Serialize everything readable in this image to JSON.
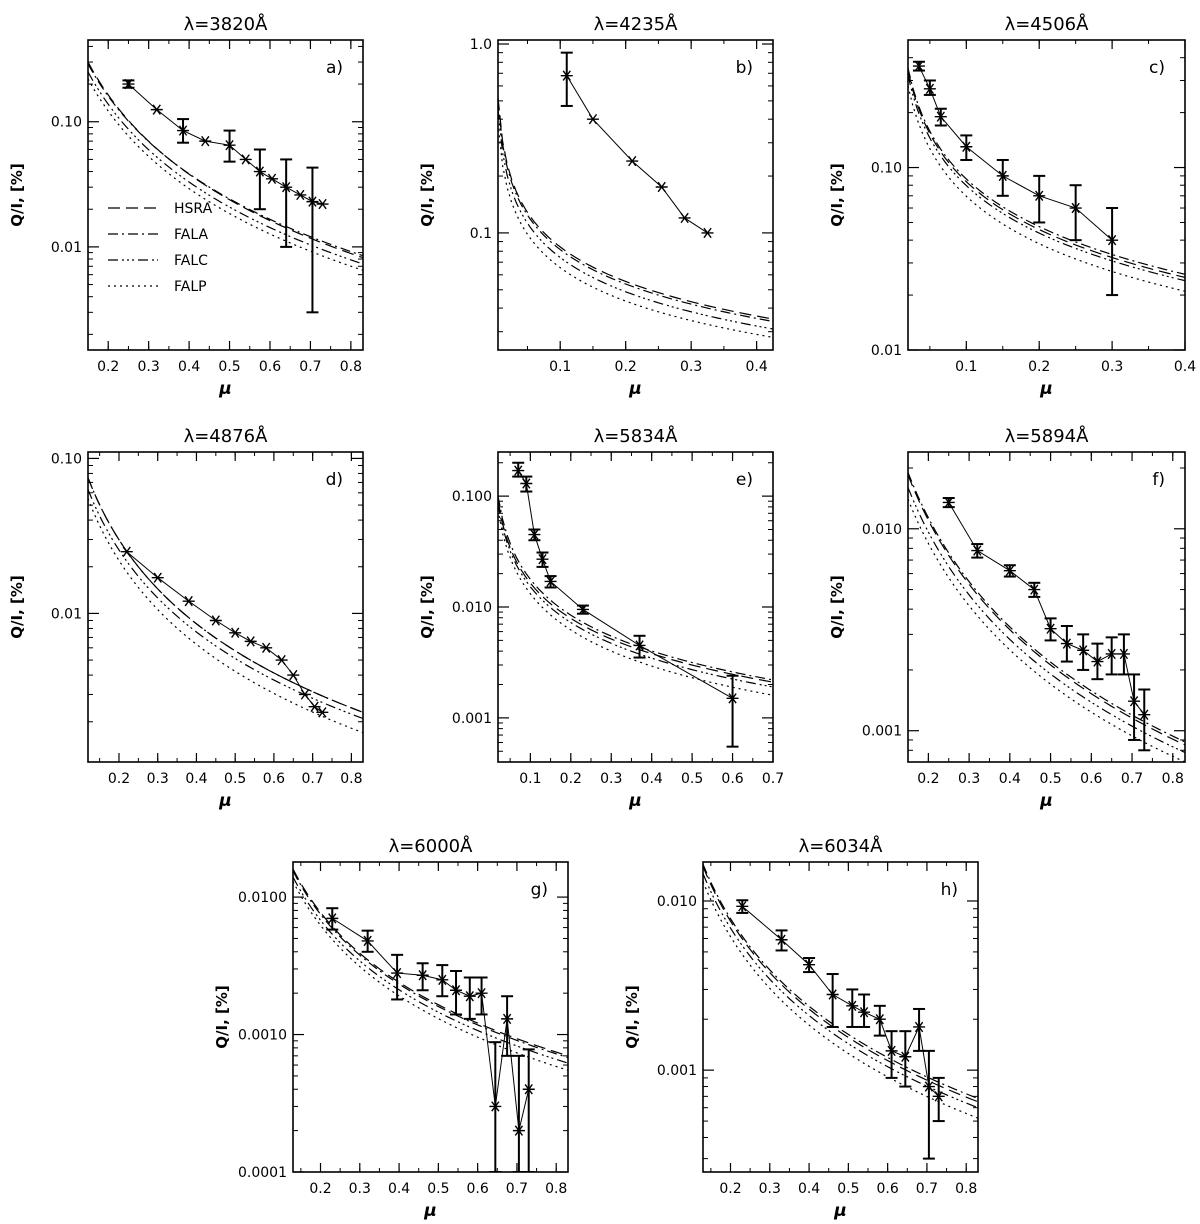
{
  "chart_data": [
    {
      "type": "line",
      "panel": "a)",
      "title": "λ=3820Å",
      "xlabel": "μ",
      "ylabel": "Q/I, [%]",
      "xlim": [
        0.15,
        0.83
      ],
      "ylim": [
        0.0015,
        0.45
      ],
      "yscale": "log",
      "xticks": [
        "0.2",
        "0.3",
        "0.4",
        "0.5",
        "0.6",
        "0.7",
        "0.8"
      ],
      "yticks": [
        {
          "value": 0.1,
          "label": "0.10"
        },
        {
          "value": 0.01,
          "label": "0.01"
        }
      ],
      "legend": [
        "HSRA",
        "FALA",
        "FALC",
        "FALP"
      ],
      "models": {
        "HSRA": [
          0.3,
          0.0082
        ],
        "FALA": [
          0.29,
          0.0085
        ],
        "FALC": [
          0.25,
          0.0073
        ],
        "FALP": [
          0.22,
          0.0065
        ]
      },
      "observations": [
        {
          "mu": 0.25,
          "q": 0.2,
          "err": [
            0.187,
            0.214
          ]
        },
        {
          "mu": 0.32,
          "q": 0.125
        },
        {
          "mu": 0.385,
          "q": 0.085,
          "err": [
            0.068,
            0.105
          ]
        },
        {
          "mu": 0.44,
          "q": 0.07
        },
        {
          "mu": 0.5,
          "q": 0.065,
          "err": [
            0.048,
            0.085
          ]
        },
        {
          "mu": 0.54,
          "q": 0.05
        },
        {
          "mu": 0.575,
          "q": 0.04,
          "err": [
            0.02,
            0.06
          ]
        },
        {
          "mu": 0.605,
          "q": 0.035
        },
        {
          "mu": 0.64,
          "q": 0.03,
          "err": [
            0.01,
            0.05
          ]
        },
        {
          "mu": 0.675,
          "q": 0.026
        },
        {
          "mu": 0.705,
          "q": 0.023,
          "err": [
            0.003,
            0.043
          ]
        },
        {
          "mu": 0.73,
          "q": 0.022
        }
      ]
    },
    {
      "type": "line",
      "panel": "b)",
      "title": "λ=4235Å",
      "xlabel": "μ",
      "ylabel": "Q/I, [%]",
      "xlim": [
        0.005,
        0.425
      ],
      "ylim": [
        0.024,
        1.05
      ],
      "yscale": "log",
      "xticks": [
        "0.1",
        "0.2",
        "0.3",
        "0.4"
      ],
      "yticks": [
        {
          "value": 1.0,
          "label": "1.0"
        },
        {
          "value": 0.1,
          "label": "0.1"
        }
      ],
      "models": {
        "HSRA": [
          0.52,
          0.035
        ],
        "FALA": [
          0.5,
          0.034
        ],
        "FALC": [
          0.45,
          0.031
        ],
        "FALP": [
          0.38,
          0.028
        ]
      },
      "observations": [
        {
          "mu": 0.11,
          "q": 0.68,
          "err": [
            0.47,
            0.9
          ]
        },
        {
          "mu": 0.15,
          "q": 0.4
        },
        {
          "mu": 0.21,
          "q": 0.24
        },
        {
          "mu": 0.255,
          "q": 0.175
        },
        {
          "mu": 0.29,
          "q": 0.12
        },
        {
          "mu": 0.325,
          "q": 0.1
        }
      ]
    },
    {
      "type": "line",
      "panel": "c)",
      "title": "λ=4506Å",
      "xlabel": "μ",
      "ylabel": "Q/I, [%]",
      "xlim": [
        0.02,
        0.4
      ],
      "ylim": [
        0.01,
        0.5
      ],
      "yscale": "log",
      "xticks": [
        "0.1",
        "0.2",
        "0.3",
        "0.4"
      ],
      "yticks": [
        {
          "value": 0.1,
          "label": "0.10"
        },
        {
          "value": 0.01,
          "label": "0.01"
        }
      ],
      "models": {
        "HSRA": [
          0.34,
          0.025
        ],
        "FALA": [
          0.35,
          0.026
        ],
        "FALC": [
          0.32,
          0.024
        ],
        "FALP": [
          0.28,
          0.021
        ]
      },
      "observations": [
        {
          "mu": 0.035,
          "q": 0.36,
          "err": [
            0.34,
            0.38
          ]
        },
        {
          "mu": 0.05,
          "q": 0.27,
          "err": [
            0.25,
            0.3
          ]
        },
        {
          "mu": 0.065,
          "q": 0.19,
          "err": [
            0.17,
            0.21
          ]
        },
        {
          "mu": 0.1,
          "q": 0.13,
          "err": [
            0.11,
            0.15
          ]
        },
        {
          "mu": 0.15,
          "q": 0.09,
          "err": [
            0.07,
            0.11
          ]
        },
        {
          "mu": 0.2,
          "q": 0.07,
          "err": [
            0.05,
            0.09
          ]
        },
        {
          "mu": 0.25,
          "q": 0.06,
          "err": [
            0.04,
            0.08
          ]
        },
        {
          "mu": 0.3,
          "q": 0.04,
          "err": [
            0.02,
            0.06
          ]
        }
      ]
    },
    {
      "type": "line",
      "panel": "d)",
      "title": "λ=4876Å",
      "xlabel": "μ",
      "ylabel": "Q/I, [%]",
      "xlim": [
        0.12,
        0.83
      ],
      "ylim": [
        0.0011,
        0.11
      ],
      "yscale": "log",
      "xticks": [
        "0.2",
        "0.3",
        "0.4",
        "0.5",
        "0.6",
        "0.7",
        "0.8"
      ],
      "yticks": [
        {
          "value": 0.1,
          "label": "0.10"
        },
        {
          "value": 0.01,
          "label": "0.01"
        }
      ],
      "models": {
        "HSRA": [
          0.075,
          0.0023
        ],
        "FALA": [
          0.075,
          0.0023
        ],
        "FALC": [
          0.063,
          0.0021
        ],
        "FALP": [
          0.055,
          0.0017
        ]
      },
      "observations": [
        {
          "mu": 0.22,
          "q": 0.025
        },
        {
          "mu": 0.3,
          "q": 0.017
        },
        {
          "mu": 0.38,
          "q": 0.012
        },
        {
          "mu": 0.45,
          "q": 0.009
        },
        {
          "mu": 0.5,
          "q": 0.0075
        },
        {
          "mu": 0.54,
          "q": 0.0066
        },
        {
          "mu": 0.58,
          "q": 0.006
        },
        {
          "mu": 0.62,
          "q": 0.005
        },
        {
          "mu": 0.65,
          "q": 0.004
        },
        {
          "mu": 0.68,
          "q": 0.003
        },
        {
          "mu": 0.705,
          "q": 0.0025
        },
        {
          "mu": 0.725,
          "q": 0.0023
        }
      ]
    },
    {
      "type": "line",
      "panel": "e)",
      "title": "λ=5834Å",
      "xlabel": "μ",
      "ylabel": "Q/I, [%]",
      "xlim": [
        0.02,
        0.7
      ],
      "ylim": [
        0.0004,
        0.25
      ],
      "yscale": "log",
      "xticks": [
        "0.1",
        "0.2",
        "0.3",
        "0.4",
        "0.5",
        "0.6",
        "0.7"
      ],
      "yticks": [
        {
          "value": 0.1,
          "label": "0.100"
        },
        {
          "value": 0.01,
          "label": "0.010"
        },
        {
          "value": 0.001,
          "label": "0.001"
        }
      ],
      "models": {
        "HSRA": [
          0.09,
          0.0021
        ],
        "FALA": [
          0.1,
          0.0022
        ],
        "FALC": [
          0.085,
          0.0019
        ],
        "FALP": [
          0.075,
          0.0016
        ]
      },
      "observations": [
        {
          "mu": 0.07,
          "q": 0.17,
          "err": [
            0.15,
            0.2
          ]
        },
        {
          "mu": 0.09,
          "q": 0.13,
          "err": [
            0.11,
            0.15
          ]
        },
        {
          "mu": 0.11,
          "q": 0.045,
          "err": [
            0.04,
            0.05
          ]
        },
        {
          "mu": 0.13,
          "q": 0.027,
          "err": [
            0.023,
            0.031
          ]
        },
        {
          "mu": 0.15,
          "q": 0.017,
          "err": [
            0.015,
            0.019
          ]
        },
        {
          "mu": 0.23,
          "q": 0.0095,
          "err": [
            0.0087,
            0.0103
          ]
        },
        {
          "mu": 0.37,
          "q": 0.0045,
          "err": [
            0.0035,
            0.0055
          ]
        },
        {
          "mu": 0.6,
          "q": 0.0015,
          "err": [
            0.00055,
            0.0024
          ]
        }
      ]
    },
    {
      "type": "line",
      "panel": "f)",
      "title": "λ=5894Å",
      "xlabel": "μ",
      "ylabel": "Q/I, [%]",
      "xlim": [
        0.15,
        0.83
      ],
      "ylim": [
        0.0007,
        0.024
      ],
      "yscale": "log",
      "xticks": [
        "0.2",
        "0.3",
        "0.4",
        "0.5",
        "0.6",
        "0.7",
        "0.8"
      ],
      "yticks": [
        {
          "value": 0.01,
          "label": "0.010"
        },
        {
          "value": 0.001,
          "label": "0.001"
        }
      ],
      "models": {
        "HSRA": [
          0.0185,
          0.00085
        ],
        "FALA": [
          0.019,
          0.00088
        ],
        "FALC": [
          0.016,
          0.00078
        ],
        "FALP": [
          0.014,
          0.0007
        ]
      },
      "observations": [
        {
          "mu": 0.25,
          "q": 0.0135,
          "err": [
            0.0128,
            0.0142
          ]
        },
        {
          "mu": 0.32,
          "q": 0.0078,
          "err": [
            0.0072,
            0.0084
          ]
        },
        {
          "mu": 0.4,
          "q": 0.0062,
          "err": [
            0.0058,
            0.0066
          ]
        },
        {
          "mu": 0.46,
          "q": 0.005,
          "err": [
            0.0046,
            0.0054
          ]
        },
        {
          "mu": 0.5,
          "q": 0.0032,
          "err": [
            0.0028,
            0.0036
          ]
        },
        {
          "mu": 0.54,
          "q": 0.0027,
          "err": [
            0.0022,
            0.0033
          ]
        },
        {
          "mu": 0.58,
          "q": 0.0025,
          "err": [
            0.002,
            0.003
          ]
        },
        {
          "mu": 0.615,
          "q": 0.0022,
          "err": [
            0.0018,
            0.0027
          ]
        },
        {
          "mu": 0.65,
          "q": 0.0024,
          "err": [
            0.0019,
            0.0029
          ]
        },
        {
          "mu": 0.68,
          "q": 0.0024,
          "err": [
            0.0019,
            0.003
          ]
        },
        {
          "mu": 0.705,
          "q": 0.0014,
          "err": [
            0.0009,
            0.0019
          ]
        },
        {
          "mu": 0.73,
          "q": 0.0012,
          "err": [
            0.0008,
            0.0016
          ]
        }
      ]
    },
    {
      "type": "line",
      "panel": "g)",
      "title": "λ=6000Å",
      "xlabel": "μ",
      "ylabel": "Q/I, [%]",
      "xlim": [
        0.13,
        0.83
      ],
      "ylim": [
        0.0001,
        0.018
      ],
      "yscale": "log",
      "xticks": [
        "0.2",
        "0.3",
        "0.4",
        "0.5",
        "0.6",
        "0.7",
        "0.8"
      ],
      "yticks": [
        {
          "value": 0.01,
          "label": "0.0100"
        },
        {
          "value": 0.001,
          "label": "0.0010"
        },
        {
          "value": 0.0001,
          "label": "0.0001"
        }
      ],
      "models": {
        "HSRA": [
          0.016,
          0.0007
        ],
        "FALA": [
          0.0155,
          0.00068
        ],
        "FALC": [
          0.014,
          0.00062
        ],
        "FALP": [
          0.013,
          0.00055
        ]
      },
      "observations": [
        {
          "mu": 0.23,
          "q": 0.007,
          "err": [
            0.0058,
            0.0083
          ]
        },
        {
          "mu": 0.32,
          "q": 0.0048,
          "err": [
            0.004,
            0.0057
          ]
        },
        {
          "mu": 0.395,
          "q": 0.0028,
          "err": [
            0.0018,
            0.0038
          ]
        },
        {
          "mu": 0.46,
          "q": 0.0027,
          "err": [
            0.0021,
            0.0033
          ]
        },
        {
          "mu": 0.51,
          "q": 0.0025,
          "err": [
            0.0019,
            0.0032
          ]
        },
        {
          "mu": 0.545,
          "q": 0.0021,
          "err": [
            0.0014,
            0.0029
          ]
        },
        {
          "mu": 0.58,
          "q": 0.0019,
          "err": [
            0.0013,
            0.0026
          ]
        },
        {
          "mu": 0.61,
          "q": 0.002,
          "err": [
            0.0014,
            0.0026
          ]
        },
        {
          "mu": 0.645,
          "q": 0.0003,
          "err": [
            0.0001,
            0.00088
          ]
        },
        {
          "mu": 0.675,
          "q": 0.0013,
          "err": [
            0.0007,
            0.0019
          ]
        },
        {
          "mu": 0.705,
          "q": 0.0002,
          "err": [
            0.0001,
            0.0007
          ]
        },
        {
          "mu": 0.73,
          "q": 0.0004,
          "err": [
            0.0001,
            0.00078
          ]
        }
      ]
    },
    {
      "type": "line",
      "panel": "h)",
      "title": "λ=6034Å",
      "xlabel": "μ",
      "ylabel": "Q/I, [%]",
      "xlim": [
        0.13,
        0.83
      ],
      "ylim": [
        0.00025,
        0.017
      ],
      "yscale": "log",
      "xticks": [
        "0.2",
        "0.3",
        "0.4",
        "0.5",
        "0.6",
        "0.7",
        "0.8"
      ],
      "yticks": [
        {
          "value": 0.01,
          "label": "0.010"
        },
        {
          "value": 0.001,
          "label": "0.001"
        }
      ],
      "models": {
        "HSRA": [
          0.016,
          0.00065
        ],
        "FALA": [
          0.0165,
          0.00068
        ],
        "FALC": [
          0.0145,
          0.0006
        ],
        "FALP": [
          0.013,
          0.00052
        ]
      },
      "observations": [
        {
          "mu": 0.23,
          "q": 0.0093,
          "err": [
            0.0085,
            0.0101
          ]
        },
        {
          "mu": 0.33,
          "q": 0.0059,
          "err": [
            0.0051,
            0.0067
          ]
        },
        {
          "mu": 0.4,
          "q": 0.0042,
          "err": [
            0.0038,
            0.0046
          ]
        },
        {
          "mu": 0.46,
          "q": 0.0028,
          "err": [
            0.0018,
            0.0037
          ]
        },
        {
          "mu": 0.51,
          "q": 0.0024,
          "err": [
            0.0018,
            0.003
          ]
        },
        {
          "mu": 0.54,
          "q": 0.0022,
          "err": [
            0.0018,
            0.0028
          ]
        },
        {
          "mu": 0.58,
          "q": 0.002,
          "err": [
            0.0016,
            0.0024
          ]
        },
        {
          "mu": 0.61,
          "q": 0.0013,
          "err": [
            0.0009,
            0.0017
          ]
        },
        {
          "mu": 0.645,
          "q": 0.0012,
          "err": [
            0.0008,
            0.0017
          ]
        },
        {
          "mu": 0.68,
          "q": 0.0018,
          "err": [
            0.0013,
            0.0023
          ]
        },
        {
          "mu": 0.705,
          "q": 0.0008,
          "err": [
            0.0003,
            0.0013
          ]
        },
        {
          "mu": 0.73,
          "q": 0.0007,
          "err": [
            0.0005,
            0.0009
          ]
        }
      ]
    }
  ]
}
